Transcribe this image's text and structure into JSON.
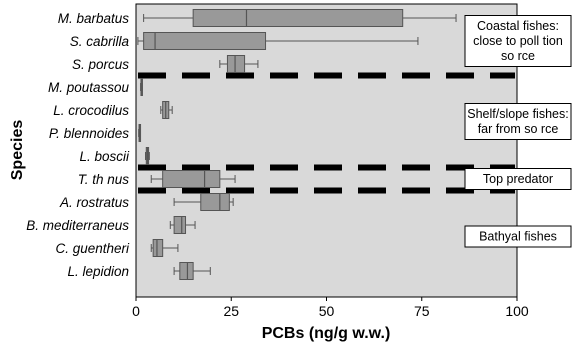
{
  "chart_data": {
    "type": "boxplot",
    "orientation": "horizontal",
    "xlabel": "PCBs (ng/g w.w.)",
    "ylabel": "Species",
    "xlim": [
      0,
      100
    ],
    "xticks": [
      0,
      25,
      50,
      75,
      100
    ],
    "grid": false,
    "colors": {
      "plot_bg": "#d9d9d9",
      "box_fill": "#999999",
      "outline": "#555555",
      "separator": "#000000"
    },
    "categories": [
      "M. barbatus",
      "S. cabrilla",
      "S. porcus",
      "M. poutassou",
      "L. crocodilus",
      "P. blennoides",
      "L. boscii",
      "T. th nus",
      "A. rostratus",
      "B. mediterraneus",
      "C. guentheri",
      "L. lepidion"
    ],
    "boxes": [
      {
        "min": 2,
        "q1": 15,
        "median": 29,
        "q3": 70,
        "max": 84
      },
      {
        "min": 0.5,
        "q1": 2,
        "median": 5,
        "q3": 34,
        "max": 74
      },
      {
        "min": 22,
        "q1": 24,
        "median": 26,
        "q3": 28.5,
        "max": 32
      },
      {
        "min": 1.2,
        "q1": 1.3,
        "median": 1.4,
        "q3": 1.5,
        "max": 1.6
      },
      {
        "min": 6.5,
        "q1": 7,
        "median": 7.8,
        "q3": 8.6,
        "max": 9.5
      },
      {
        "min": 0.7,
        "q1": 0.8,
        "median": 0.9,
        "q3": 1.0,
        "max": 1.1
      },
      {
        "min": 2.5,
        "q1": 2.7,
        "median": 3,
        "q3": 3.3,
        "max": 3.5
      },
      {
        "min": 4,
        "q1": 7,
        "median": 18,
        "q3": 22,
        "max": 26
      },
      {
        "min": 10,
        "q1": 17,
        "median": 22,
        "q3": 24.5,
        "max": 25.5
      },
      {
        "min": 9,
        "q1": 10,
        "median": 12,
        "q3": 13,
        "max": 15.5
      },
      {
        "min": 4,
        "q1": 4.5,
        "median": 5.5,
        "q3": 7,
        "max": 11
      },
      {
        "min": 10,
        "q1": 11.5,
        "median": 13.5,
        "q3": 15,
        "max": 19.5
      }
    ],
    "separators_after": [
      2,
      6,
      7
    ],
    "groups": [
      {
        "label": [
          "Coastal fishes:",
          "close to poll tion",
          "so rce"
        ],
        "rows": [
          0,
          2
        ]
      },
      {
        "label": [
          "Shelf/slope fishes:",
          "far from so rce"
        ],
        "rows": [
          3,
          6
        ]
      },
      {
        "label": [
          "Top predator"
        ],
        "rows": [
          7,
          7
        ]
      },
      {
        "label": [
          "Bathyal fishes"
        ],
        "rows": [
          8,
          11
        ]
      }
    ]
  }
}
